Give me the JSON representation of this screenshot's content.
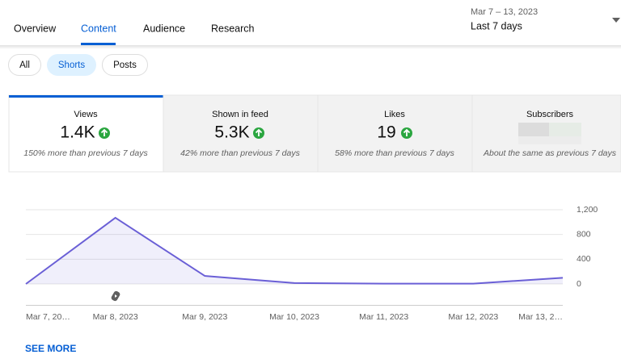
{
  "tabs": [
    "Overview",
    "Content",
    "Audience",
    "Research"
  ],
  "date_range": {
    "dates": "Mar 7 – 13, 2023",
    "label": "Last 7 days"
  },
  "filters": [
    "All",
    "Shorts",
    "Posts"
  ],
  "metrics": [
    {
      "name": "Views",
      "value": "1.4K",
      "change": "150% more than previous 7 days"
    },
    {
      "name": "Shown in feed",
      "value": "5.3K",
      "change": "42% more than previous 7 days"
    },
    {
      "name": "Likes",
      "value": "19",
      "change": "58% more than previous 7 days"
    },
    {
      "name": "Subscribers",
      "change": "About the same as previous 7 days"
    }
  ],
  "chart_data": {
    "type": "area",
    "categories": [
      "Mar 7, 20…",
      "Mar 8, 2023",
      "Mar 9, 2023",
      "Mar 10, 2023",
      "Mar 11, 2023",
      "Mar 12, 2023",
      "Mar 13, 2…"
    ],
    "values": [
      0,
      1070,
      130,
      15,
      5,
      5,
      100
    ],
    "color": "#6a5fd6",
    "ylim": [
      0,
      1200
    ],
    "yticks": [
      0,
      400,
      800,
      {
        "value": 1200,
        "label": "1,200"
      }
    ],
    "grid": true
  },
  "see_more": "SEE MORE"
}
